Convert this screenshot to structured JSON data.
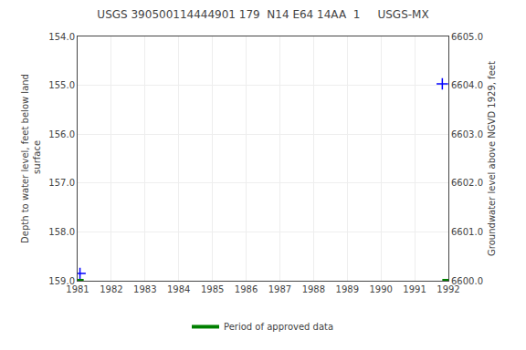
{
  "chart_data": {
    "type": "line",
    "title": "USGS 390500114444901 179  N14 E64 14AA  1     USGS-MX",
    "ylabel": "Depth to water level, feet below land\n surface",
    "y2label": "Groundwater level above NGVD 1929, feet",
    "xlim": [
      1981,
      1992
    ],
    "xticks": [
      1981,
      1982,
      1983,
      1984,
      1985,
      1986,
      1987,
      1988,
      1989,
      1990,
      1991,
      1992
    ],
    "ylim": [
      159.0,
      154.0
    ],
    "yticks": [
      {
        "value": 154.0,
        "label": "154.0"
      },
      {
        "value": 155.0,
        "label": "155.0"
      },
      {
        "value": 156.0,
        "label": "156.0"
      },
      {
        "value": 157.0,
        "label": "157.0"
      },
      {
        "value": 158.0,
        "label": "158.0"
      },
      {
        "value": 159.0,
        "label": "159.0"
      }
    ],
    "y2lim": [
      6600.0,
      6605.0
    ],
    "y2ticks": [
      {
        "value": 6600.0,
        "label": "6600.0"
      },
      {
        "value": 6601.0,
        "label": "6601.0"
      },
      {
        "value": 6602.0,
        "label": "6602.0"
      },
      {
        "value": 6603.0,
        "label": "6603.0"
      },
      {
        "value": 6604.0,
        "label": "6604.0"
      },
      {
        "value": 6605.0,
        "label": "6605.0"
      }
    ],
    "grid": true,
    "legend": "bottom",
    "series": [
      {
        "type": "line",
        "line_style": "dashed",
        "color": "blue",
        "x": [
          1981.07,
          1981.07
        ],
        "values": [
          158.85,
          158.9
        ]
      },
      {
        "type": "scatter",
        "marker": "plus",
        "color": "blue",
        "x": [
          1981.07,
          1991.82
        ],
        "values": [
          158.85,
          154.97
        ]
      },
      {
        "name": "Period of approved data",
        "type": "line",
        "line_style": "solid",
        "color": "#008000",
        "x": [
          1981.0,
          1981.18,
          null,
          1991.82,
          1992.0
        ],
        "values": [
          159.0,
          159.0,
          null,
          159.0,
          159.0
        ]
      }
    ]
  }
}
